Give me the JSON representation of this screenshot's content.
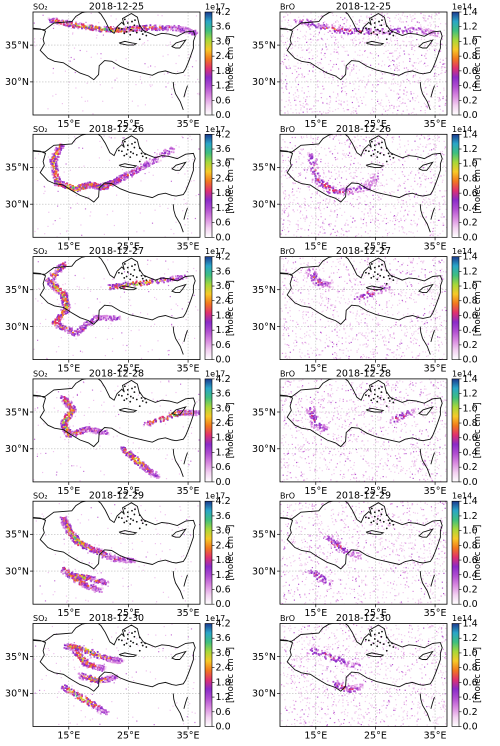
{
  "figure": {
    "rows": [
      "2018-12-25",
      "2018-12-26",
      "2018-12-27",
      "2018-12-28",
      "2018-12-29",
      "2018-12-30"
    ],
    "columns": [
      {
        "species": "SO₂",
        "scale_exponent": "1e17",
        "colorbar_ticks": [
          "0.0",
          "0.6",
          "1.2",
          "1.8",
          "2.4",
          "3.0",
          "3.6",
          "4.2"
        ],
        "vmax": 4.2
      },
      {
        "species": "BrO",
        "scale_exponent": "1e14",
        "colorbar_ticks": [
          "0.0",
          "0.2",
          "0.4",
          "0.6",
          "0.8",
          "1.0",
          "1.2",
          "1.4"
        ],
        "vmax": 1.4
      }
    ],
    "colorbar_label": "[molec cm⁻²]",
    "colormap": [
      "#ffffff",
      "#f3d0f1",
      "#d98be0",
      "#b14fd1",
      "#8a2cc8",
      "#e0316e",
      "#f2781e",
      "#f7c928",
      "#a7d83a",
      "#3fbf7f",
      "#2aa6c8",
      "#1b3a8f"
    ],
    "map_color": "#111111",
    "grid_color": "#bbbbbb"
  },
  "chart_data": [
    {
      "type": "heatmap",
      "title": "2018-12-25",
      "label": "SO₂",
      "xlabel": "",
      "ylabel": "",
      "x_ticks": [
        "15°E",
        "25°E",
        "35°E"
      ],
      "y_ticks": [
        "35°N",
        "30°N"
      ],
      "xlim": [
        9,
        37
      ],
      "ylim": [
        25.5,
        39.5
      ],
      "colorbar_range": [
        0,
        4.2
      ],
      "colorbar_scale": "1e17"
    },
    {
      "type": "heatmap",
      "title": "2018-12-25",
      "label": "BrO",
      "xlabel": "",
      "ylabel": "",
      "x_ticks": [
        "15°E",
        "25°E",
        "35°E"
      ],
      "y_ticks": [
        "35°N",
        "30°N"
      ],
      "xlim": [
        9,
        37
      ],
      "ylim": [
        25.5,
        39.5
      ],
      "colorbar_range": [
        0,
        1.4
      ],
      "colorbar_scale": "1e14"
    },
    {
      "type": "heatmap",
      "title": "2018-12-26",
      "label": "SO₂",
      "xlabel": "",
      "ylabel": "",
      "x_ticks": [
        "15°E",
        "25°E",
        "35°E"
      ],
      "y_ticks": [
        "35°N",
        "30°N"
      ],
      "xlim": [
        9,
        37
      ],
      "ylim": [
        25.5,
        39.5
      ],
      "colorbar_range": [
        0,
        4.2
      ],
      "colorbar_scale": "1e17"
    },
    {
      "type": "heatmap",
      "title": "2018-12-26",
      "label": "BrO",
      "xlabel": "",
      "ylabel": "",
      "x_ticks": [
        "15°E",
        "25°E",
        "35°E"
      ],
      "y_ticks": [
        "35°N",
        "30°N"
      ],
      "xlim": [
        9,
        37
      ],
      "ylim": [
        25.5,
        39.5
      ],
      "colorbar_range": [
        0,
        1.4
      ],
      "colorbar_scale": "1e14"
    },
    {
      "type": "heatmap",
      "title": "2018-12-27",
      "label": "SO₂",
      "xlabel": "",
      "ylabel": "",
      "x_ticks": [
        "15°E",
        "25°E",
        "35°E"
      ],
      "y_ticks": [
        "35°N",
        "30°N"
      ],
      "xlim": [
        9,
        37
      ],
      "ylim": [
        25.5,
        39.5
      ],
      "colorbar_range": [
        0,
        4.2
      ],
      "colorbar_scale": "1e17"
    },
    {
      "type": "heatmap",
      "title": "2018-12-27",
      "label": "BrO",
      "xlabel": "",
      "ylabel": "",
      "x_ticks": [
        "15°E",
        "25°E",
        "35°E"
      ],
      "y_ticks": [
        "35°N",
        "30°N"
      ],
      "xlim": [
        9,
        37
      ],
      "ylim": [
        25.5,
        39.5
      ],
      "colorbar_range": [
        0,
        1.4
      ],
      "colorbar_scale": "1e14"
    },
    {
      "type": "heatmap",
      "title": "2018-12-28",
      "label": "SO₂",
      "xlabel": "",
      "ylabel": "",
      "x_ticks": [
        "15°E",
        "25°E",
        "35°E"
      ],
      "y_ticks": [
        "35°N",
        "30°N"
      ],
      "xlim": [
        9,
        37
      ],
      "ylim": [
        25.5,
        39.5
      ],
      "colorbar_range": [
        0,
        4.2
      ],
      "colorbar_scale": "1e17"
    },
    {
      "type": "heatmap",
      "title": "2018-12-28",
      "label": "BrO",
      "xlabel": "",
      "ylabel": "",
      "x_ticks": [
        "15°E",
        "25°E",
        "35°E"
      ],
      "y_ticks": [
        "35°N",
        "30°N"
      ],
      "xlim": [
        9,
        37
      ],
      "ylim": [
        25.5,
        39.5
      ],
      "colorbar_range": [
        0,
        1.4
      ],
      "colorbar_scale": "1e14"
    },
    {
      "type": "heatmap",
      "title": "2018-12-29",
      "label": "SO₂",
      "xlabel": "",
      "ylabel": "",
      "x_ticks": [
        "15°E",
        "25°E",
        "35°E"
      ],
      "y_ticks": [
        "35°N",
        "30°N"
      ],
      "xlim": [
        9,
        37
      ],
      "ylim": [
        25.5,
        39.5
      ],
      "colorbar_range": [
        0,
        4.2
      ],
      "colorbar_scale": "1e17"
    },
    {
      "type": "heatmap",
      "title": "2018-12-29",
      "label": "BrO",
      "xlabel": "",
      "ylabel": "",
      "x_ticks": [
        "15°E",
        "25°E",
        "35°E"
      ],
      "y_ticks": [
        "35°N",
        "30°N"
      ],
      "xlim": [
        9,
        37
      ],
      "ylim": [
        25.5,
        39.5
      ],
      "colorbar_range": [
        0,
        1.4
      ],
      "colorbar_scale": "1e14"
    },
    {
      "type": "heatmap",
      "title": "2018-12-30",
      "label": "SO₂",
      "xlabel": "",
      "ylabel": "",
      "x_ticks": [
        "15°E",
        "25°E",
        "35°E"
      ],
      "y_ticks": [
        "35°N",
        "30°N"
      ],
      "xlim": [
        9,
        37
      ],
      "ylim": [
        25.5,
        39.5
      ],
      "colorbar_range": [
        0,
        4.2
      ],
      "colorbar_scale": "1e17"
    },
    {
      "type": "heatmap",
      "title": "2018-12-30",
      "label": "BrO",
      "xlabel": "",
      "ylabel": "",
      "x_ticks": [
        "15°E",
        "25°E",
        "35°E"
      ],
      "y_ticks": [
        "35°N",
        "30°N"
      ],
      "xlim": [
        9,
        37
      ],
      "ylim": [
        25.5,
        39.5
      ],
      "colorbar_range": [
        0,
        1.4
      ],
      "colorbar_scale": "1e14"
    }
  ]
}
